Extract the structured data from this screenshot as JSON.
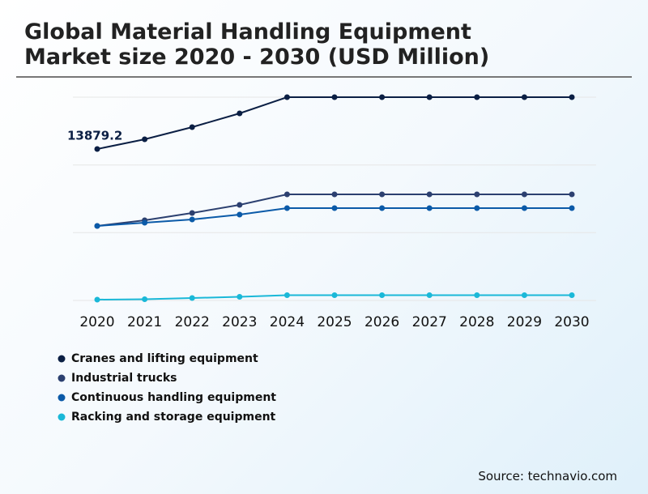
{
  "chart_data": {
    "type": "line",
    "title": "Global Material Handling Equipment Market size 2020 - 2030 (USD Million)",
    "categories": [
      "2020",
      "2021",
      "2022",
      "2023",
      "2024",
      "2025",
      "2026",
      "2027",
      "2028",
      "2029",
      "2030"
    ],
    "series": [
      {
        "name": "Cranes and lifting equipment",
        "color": "#0b1f44",
        "values": [
          13879.2,
          14770,
          15883,
          17145,
          18630,
          18630,
          18630,
          18630,
          18630,
          18630,
          18630
        ]
      },
      {
        "name": "Industrial trucks",
        "color": "#2c4070",
        "values": [
          6828,
          7348,
          8016,
          8758,
          9723,
          9723,
          9723,
          9723,
          9723,
          9723,
          9723
        ]
      },
      {
        "name": "Continuous handling equipment",
        "color": "#0b5aa8",
        "values": [
          6828,
          7125,
          7422,
          7867,
          8461,
          8461,
          8461,
          8461,
          8461,
          8461,
          8461
        ]
      },
      {
        "name": "Racking and storage equipment",
        "color": "#1ab8d8",
        "values": [
          74,
          111,
          223,
          334,
          482,
          482,
          482,
          482,
          482,
          482,
          482
        ]
      }
    ],
    "ylim": [
      0,
      18630
    ],
    "source": "Source: technavio.com"
  }
}
